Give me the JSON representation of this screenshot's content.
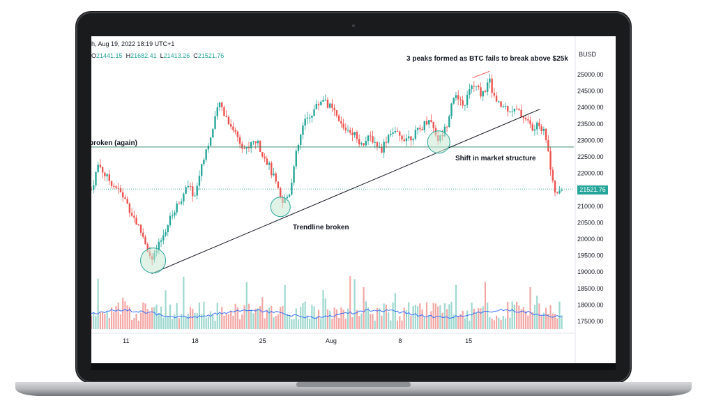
{
  "header": {
    "date": "h, Aug 19, 2022 18:19 UTC+1",
    "ohlc": [
      {
        "key": "O",
        "value": "21441.15"
      },
      {
        "key": "H",
        "value": "21682.41"
      },
      {
        "key": "L",
        "value": "21413.26"
      },
      {
        "key": "C",
        "value": "21521.76"
      }
    ]
  },
  "axis": {
    "currency": "BUSD",
    "last_price": "21521.76"
  },
  "annotations": {
    "peaks": "3 peaks formed as BTC fails to break above $25k",
    "broken_again": "broken (again)",
    "shift": "Shift in market structure",
    "trendline": "Trendline broken"
  },
  "colors": {
    "up": "#26a69a",
    "down": "#ef5350",
    "ma": "#2962ff",
    "circle_fill": "#c8ead4",
    "circle_stroke": "#26a69a"
  },
  "chart_data": {
    "type": "candlestick",
    "ylim": [
      17300,
      25600
    ],
    "y_ticks": [
      "25000.00",
      "24500.00",
      "24000.00",
      "23500.00",
      "23000.00",
      "22500.00",
      "22000.00",
      "21500.00",
      "21000.00",
      "20500.00",
      "20000.00",
      "19500.00",
      "19000.00",
      "18500.00",
      "18000.00",
      "17500.00"
    ],
    "x_ticks": [
      "11",
      "18",
      "25",
      "Aug",
      "8",
      "15"
    ],
    "last_price": 21521.76,
    "horizontal_level": 22800,
    "trendline": [
      {
        "t": 0.125,
        "price": 18950
      },
      {
        "t": 0.93,
        "price": 23950
      }
    ],
    "circles": [
      {
        "t": 0.128,
        "price": 19350
      },
      {
        "t": 0.392,
        "price": 20980
      },
      {
        "t": 0.72,
        "price": 22950
      }
    ],
    "peak_line": [
      {
        "t": 0.79,
        "price": 24900
      },
      {
        "t": 0.825,
        "price": 25100
      }
    ],
    "price_path": [
      {
        "t": 0.0,
        "price": 21500
      },
      {
        "t": 0.015,
        "price": 22300
      },
      {
        "t": 0.03,
        "price": 21900
      },
      {
        "t": 0.05,
        "price": 21600
      },
      {
        "t": 0.07,
        "price": 21200
      },
      {
        "t": 0.09,
        "price": 20600
      },
      {
        "t": 0.11,
        "price": 20000
      },
      {
        "t": 0.125,
        "price": 19300
      },
      {
        "t": 0.14,
        "price": 19800
      },
      {
        "t": 0.16,
        "price": 20500
      },
      {
        "t": 0.18,
        "price": 21100
      },
      {
        "t": 0.2,
        "price": 21600
      },
      {
        "t": 0.215,
        "price": 21300
      },
      {
        "t": 0.23,
        "price": 22400
      },
      {
        "t": 0.25,
        "price": 23200
      },
      {
        "t": 0.265,
        "price": 24150
      },
      {
        "t": 0.28,
        "price": 23700
      },
      {
        "t": 0.3,
        "price": 23200
      },
      {
        "t": 0.32,
        "price": 22700
      },
      {
        "t": 0.34,
        "price": 23000
      },
      {
        "t": 0.36,
        "price": 22500
      },
      {
        "t": 0.38,
        "price": 21800
      },
      {
        "t": 0.395,
        "price": 21050
      },
      {
        "t": 0.41,
        "price": 21400
      },
      {
        "t": 0.425,
        "price": 22600
      },
      {
        "t": 0.44,
        "price": 23500
      },
      {
        "t": 0.46,
        "price": 23900
      },
      {
        "t": 0.48,
        "price": 24300
      },
      {
        "t": 0.5,
        "price": 23900
      },
      {
        "t": 0.52,
        "price": 23400
      },
      {
        "t": 0.54,
        "price": 23300
      },
      {
        "t": 0.56,
        "price": 22900
      },
      {
        "t": 0.58,
        "price": 23100
      },
      {
        "t": 0.6,
        "price": 22700
      },
      {
        "t": 0.62,
        "price": 23300
      },
      {
        "t": 0.64,
        "price": 23100
      },
      {
        "t": 0.66,
        "price": 23100
      },
      {
        "t": 0.68,
        "price": 23300
      },
      {
        "t": 0.7,
        "price": 23700
      },
      {
        "t": 0.72,
        "price": 23000
      },
      {
        "t": 0.735,
        "price": 23400
      },
      {
        "t": 0.75,
        "price": 24400
      },
      {
        "t": 0.77,
        "price": 24000
      },
      {
        "t": 0.79,
        "price": 24700
      },
      {
        "t": 0.81,
        "price": 24400
      },
      {
        "t": 0.825,
        "price": 24800
      },
      {
        "t": 0.84,
        "price": 24100
      },
      {
        "t": 0.86,
        "price": 24000
      },
      {
        "t": 0.88,
        "price": 23900
      },
      {
        "t": 0.9,
        "price": 23700
      },
      {
        "t": 0.915,
        "price": 23300
      },
      {
        "t": 0.93,
        "price": 23500
      },
      {
        "t": 0.945,
        "price": 23000
      },
      {
        "t": 0.955,
        "price": 21700
      },
      {
        "t": 0.965,
        "price": 21300
      },
      {
        "t": 0.975,
        "price": 21520
      }
    ]
  }
}
